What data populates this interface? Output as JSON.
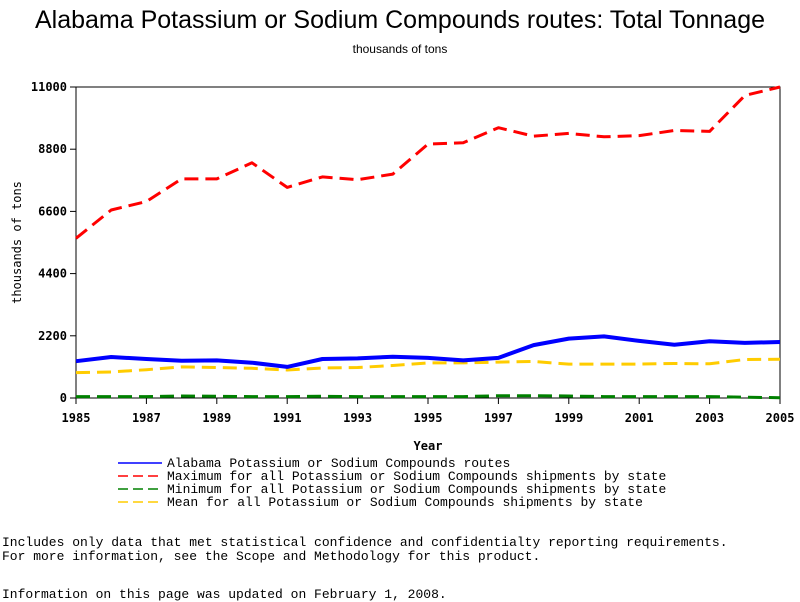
{
  "chart_data": {
    "type": "line",
    "title": "Alabama Potassium or Sodium Compounds routes: Total Tonnage",
    "subtitle": "thousands of tons",
    "xlabel": "Year",
    "ylabel": "thousands of tons",
    "xlim": [
      1985,
      2005
    ],
    "ylim": [
      0,
      11000
    ],
    "x_ticks": [
      "1985",
      "1987",
      "1989",
      "1991",
      "1993",
      "1995",
      "1997",
      "1999",
      "2001",
      "2003",
      "2005"
    ],
    "y_ticks": [
      "0",
      "2200",
      "4400",
      "6600",
      "8800",
      "11000"
    ],
    "grid": false,
    "legend_position": "bottom",
    "x": [
      1985,
      1986,
      1987,
      1988,
      1989,
      1990,
      1991,
      1992,
      1993,
      1994,
      1995,
      1996,
      1997,
      1998,
      1999,
      2000,
      2001,
      2002,
      2003,
      2004,
      2005
    ],
    "series": [
      {
        "name": "Alabama Potassium or Sodium Compounds routes",
        "color": "#0000ff",
        "style": "solid",
        "values": [
          1300,
          1450,
          1380,
          1320,
          1330,
          1250,
          1100,
          1380,
          1400,
          1460,
          1420,
          1330,
          1420,
          1870,
          2100,
          2180,
          2020,
          1880,
          2010,
          1950,
          1980
        ]
      },
      {
        "name": "Maximum for all Potassium or Sodium Compounds shipments by state",
        "color": "#ff0000",
        "style": "dashed",
        "values": [
          5650,
          6650,
          6950,
          7750,
          7750,
          8320,
          7450,
          7820,
          7720,
          7920,
          8980,
          9030,
          9560,
          9260,
          9360,
          9240,
          9280,
          9460,
          9430,
          10700,
          11000
        ]
      },
      {
        "name": "Minimum for all Potassium or Sodium Compounds shipments by state",
        "color": "#008000",
        "style": "dashed",
        "values": [
          50,
          50,
          50,
          70,
          60,
          50,
          50,
          60,
          50,
          50,
          50,
          50,
          80,
          80,
          70,
          50,
          50,
          50,
          50,
          30,
          10
        ]
      },
      {
        "name": "Mean for all Potassium or Sodium Compounds shipments by state",
        "color": "#ffcc00",
        "style": "dashed",
        "values": [
          900,
          920,
          1000,
          1100,
          1080,
          1050,
          990,
          1060,
          1080,
          1150,
          1240,
          1240,
          1270,
          1290,
          1200,
          1200,
          1200,
          1220,
          1210,
          1360,
          1370
        ]
      }
    ]
  },
  "notes": {
    "line1": "Includes only data that met statistical confidence and confidentialty reporting requirements.",
    "line2": "For more information, see the Scope and Methodology for this product."
  },
  "updated": "Information on this page was updated on February 1, 2008."
}
